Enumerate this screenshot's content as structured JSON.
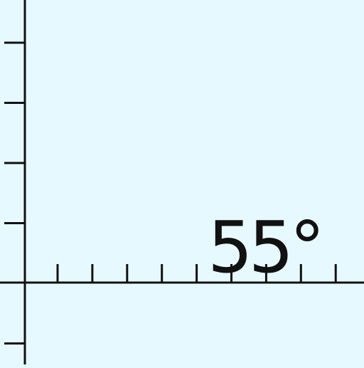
{
  "figure": {
    "background_color": "#e6f9ff",
    "ink_color": "#111111",
    "axes": {
      "x_axis_ticks": 9,
      "y_axis_ticks": 6
    },
    "angle_label": "55°"
  }
}
